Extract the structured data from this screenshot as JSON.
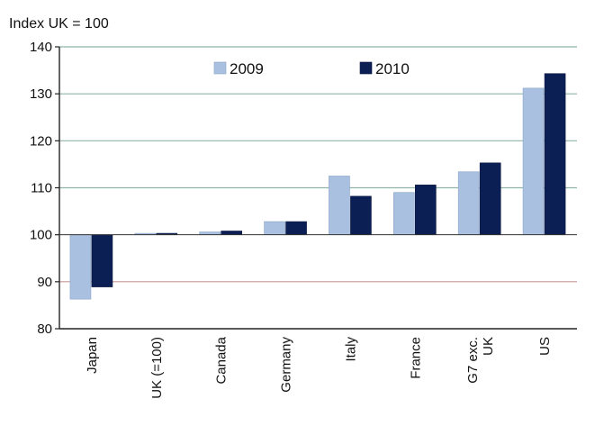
{
  "chart_data": {
    "type": "bar",
    "unit_label": "Index UK = 100",
    "categories": [
      "Japan",
      "UK (=100)",
      "Canada",
      "Germany",
      "Italy",
      "France",
      "G7 exc. UK",
      "US"
    ],
    "series": [
      {
        "name": "2009",
        "color": "#a9c0e0",
        "values": [
          86.3,
          100,
          100.6,
          102.8,
          112.5,
          109,
          113.4,
          131.2
        ]
      },
      {
        "name": "2010",
        "color": "#0c1f55",
        "values": [
          88.9,
          100,
          100.8,
          102.8,
          108.2,
          110.6,
          115.3,
          134.3
        ]
      }
    ],
    "ylim": [
      80,
      140
    ],
    "yticks": [
      80,
      90,
      100,
      110,
      120,
      130,
      140
    ],
    "baseline": 100,
    "gridline_colors": {
      "above_baseline": "#8fb5a7",
      "below_baseline": "#c99a9a"
    },
    "legend_position": "top",
    "grid": true
  }
}
